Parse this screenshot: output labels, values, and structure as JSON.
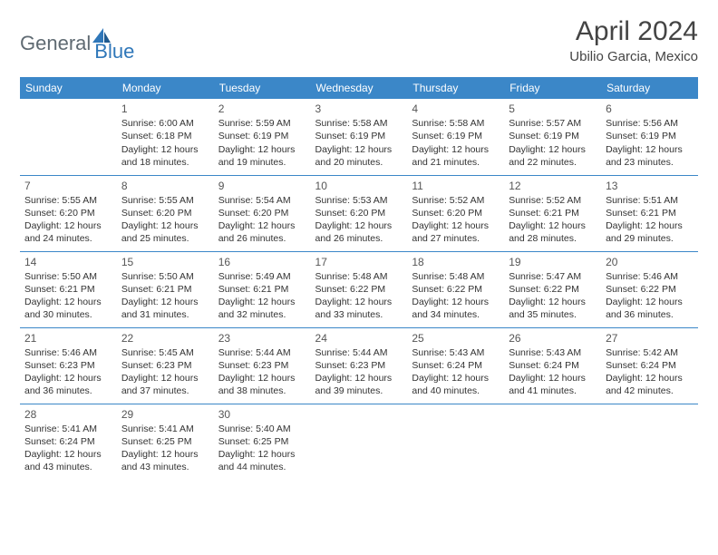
{
  "logo": {
    "text1": "General",
    "text2": "Blue"
  },
  "title": "April 2024",
  "location": "Ubilio Garcia, Mexico",
  "colors": {
    "header_bg": "#3b87c8",
    "header_text": "#ffffff",
    "border": "#3b87c8",
    "body_text": "#333333",
    "logo_gray": "#5f6a72",
    "logo_blue": "#2f77b9"
  },
  "weekdays": [
    "Sunday",
    "Monday",
    "Tuesday",
    "Wednesday",
    "Thursday",
    "Friday",
    "Saturday"
  ],
  "weeks": [
    [
      {
        "day": "",
        "lines": []
      },
      {
        "day": "1",
        "lines": [
          "Sunrise: 6:00 AM",
          "Sunset: 6:18 PM",
          "Daylight: 12 hours and 18 minutes."
        ]
      },
      {
        "day": "2",
        "lines": [
          "Sunrise: 5:59 AM",
          "Sunset: 6:19 PM",
          "Daylight: 12 hours and 19 minutes."
        ]
      },
      {
        "day": "3",
        "lines": [
          "Sunrise: 5:58 AM",
          "Sunset: 6:19 PM",
          "Daylight: 12 hours and 20 minutes."
        ]
      },
      {
        "day": "4",
        "lines": [
          "Sunrise: 5:58 AM",
          "Sunset: 6:19 PM",
          "Daylight: 12 hours and 21 minutes."
        ]
      },
      {
        "day": "5",
        "lines": [
          "Sunrise: 5:57 AM",
          "Sunset: 6:19 PM",
          "Daylight: 12 hours and 22 minutes."
        ]
      },
      {
        "day": "6",
        "lines": [
          "Sunrise: 5:56 AM",
          "Sunset: 6:19 PM",
          "Daylight: 12 hours and 23 minutes."
        ]
      }
    ],
    [
      {
        "day": "7",
        "lines": [
          "Sunrise: 5:55 AM",
          "Sunset: 6:20 PM",
          "Daylight: 12 hours and 24 minutes."
        ]
      },
      {
        "day": "8",
        "lines": [
          "Sunrise: 5:55 AM",
          "Sunset: 6:20 PM",
          "Daylight: 12 hours and 25 minutes."
        ]
      },
      {
        "day": "9",
        "lines": [
          "Sunrise: 5:54 AM",
          "Sunset: 6:20 PM",
          "Daylight: 12 hours and 26 minutes."
        ]
      },
      {
        "day": "10",
        "lines": [
          "Sunrise: 5:53 AM",
          "Sunset: 6:20 PM",
          "Daylight: 12 hours and 26 minutes."
        ]
      },
      {
        "day": "11",
        "lines": [
          "Sunrise: 5:52 AM",
          "Sunset: 6:20 PM",
          "Daylight: 12 hours and 27 minutes."
        ]
      },
      {
        "day": "12",
        "lines": [
          "Sunrise: 5:52 AM",
          "Sunset: 6:21 PM",
          "Daylight: 12 hours and 28 minutes."
        ]
      },
      {
        "day": "13",
        "lines": [
          "Sunrise: 5:51 AM",
          "Sunset: 6:21 PM",
          "Daylight: 12 hours and 29 minutes."
        ]
      }
    ],
    [
      {
        "day": "14",
        "lines": [
          "Sunrise: 5:50 AM",
          "Sunset: 6:21 PM",
          "Daylight: 12 hours and 30 minutes."
        ]
      },
      {
        "day": "15",
        "lines": [
          "Sunrise: 5:50 AM",
          "Sunset: 6:21 PM",
          "Daylight: 12 hours and 31 minutes."
        ]
      },
      {
        "day": "16",
        "lines": [
          "Sunrise: 5:49 AM",
          "Sunset: 6:21 PM",
          "Daylight: 12 hours and 32 minutes."
        ]
      },
      {
        "day": "17",
        "lines": [
          "Sunrise: 5:48 AM",
          "Sunset: 6:22 PM",
          "Daylight: 12 hours and 33 minutes."
        ]
      },
      {
        "day": "18",
        "lines": [
          "Sunrise: 5:48 AM",
          "Sunset: 6:22 PM",
          "Daylight: 12 hours and 34 minutes."
        ]
      },
      {
        "day": "19",
        "lines": [
          "Sunrise: 5:47 AM",
          "Sunset: 6:22 PM",
          "Daylight: 12 hours and 35 minutes."
        ]
      },
      {
        "day": "20",
        "lines": [
          "Sunrise: 5:46 AM",
          "Sunset: 6:22 PM",
          "Daylight: 12 hours and 36 minutes."
        ]
      }
    ],
    [
      {
        "day": "21",
        "lines": [
          "Sunrise: 5:46 AM",
          "Sunset: 6:23 PM",
          "Daylight: 12 hours and 36 minutes."
        ]
      },
      {
        "day": "22",
        "lines": [
          "Sunrise: 5:45 AM",
          "Sunset: 6:23 PM",
          "Daylight: 12 hours and 37 minutes."
        ]
      },
      {
        "day": "23",
        "lines": [
          "Sunrise: 5:44 AM",
          "Sunset: 6:23 PM",
          "Daylight: 12 hours and 38 minutes."
        ]
      },
      {
        "day": "24",
        "lines": [
          "Sunrise: 5:44 AM",
          "Sunset: 6:23 PM",
          "Daylight: 12 hours and 39 minutes."
        ]
      },
      {
        "day": "25",
        "lines": [
          "Sunrise: 5:43 AM",
          "Sunset: 6:24 PM",
          "Daylight: 12 hours and 40 minutes."
        ]
      },
      {
        "day": "26",
        "lines": [
          "Sunrise: 5:43 AM",
          "Sunset: 6:24 PM",
          "Daylight: 12 hours and 41 minutes."
        ]
      },
      {
        "day": "27",
        "lines": [
          "Sunrise: 5:42 AM",
          "Sunset: 6:24 PM",
          "Daylight: 12 hours and 42 minutes."
        ]
      }
    ],
    [
      {
        "day": "28",
        "lines": [
          "Sunrise: 5:41 AM",
          "Sunset: 6:24 PM",
          "Daylight: 12 hours and 43 minutes."
        ]
      },
      {
        "day": "29",
        "lines": [
          "Sunrise: 5:41 AM",
          "Sunset: 6:25 PM",
          "Daylight: 12 hours and 43 minutes."
        ]
      },
      {
        "day": "30",
        "lines": [
          "Sunrise: 5:40 AM",
          "Sunset: 6:25 PM",
          "Daylight: 12 hours and 44 minutes."
        ]
      },
      {
        "day": "",
        "lines": []
      },
      {
        "day": "",
        "lines": []
      },
      {
        "day": "",
        "lines": []
      },
      {
        "day": "",
        "lines": []
      }
    ]
  ]
}
